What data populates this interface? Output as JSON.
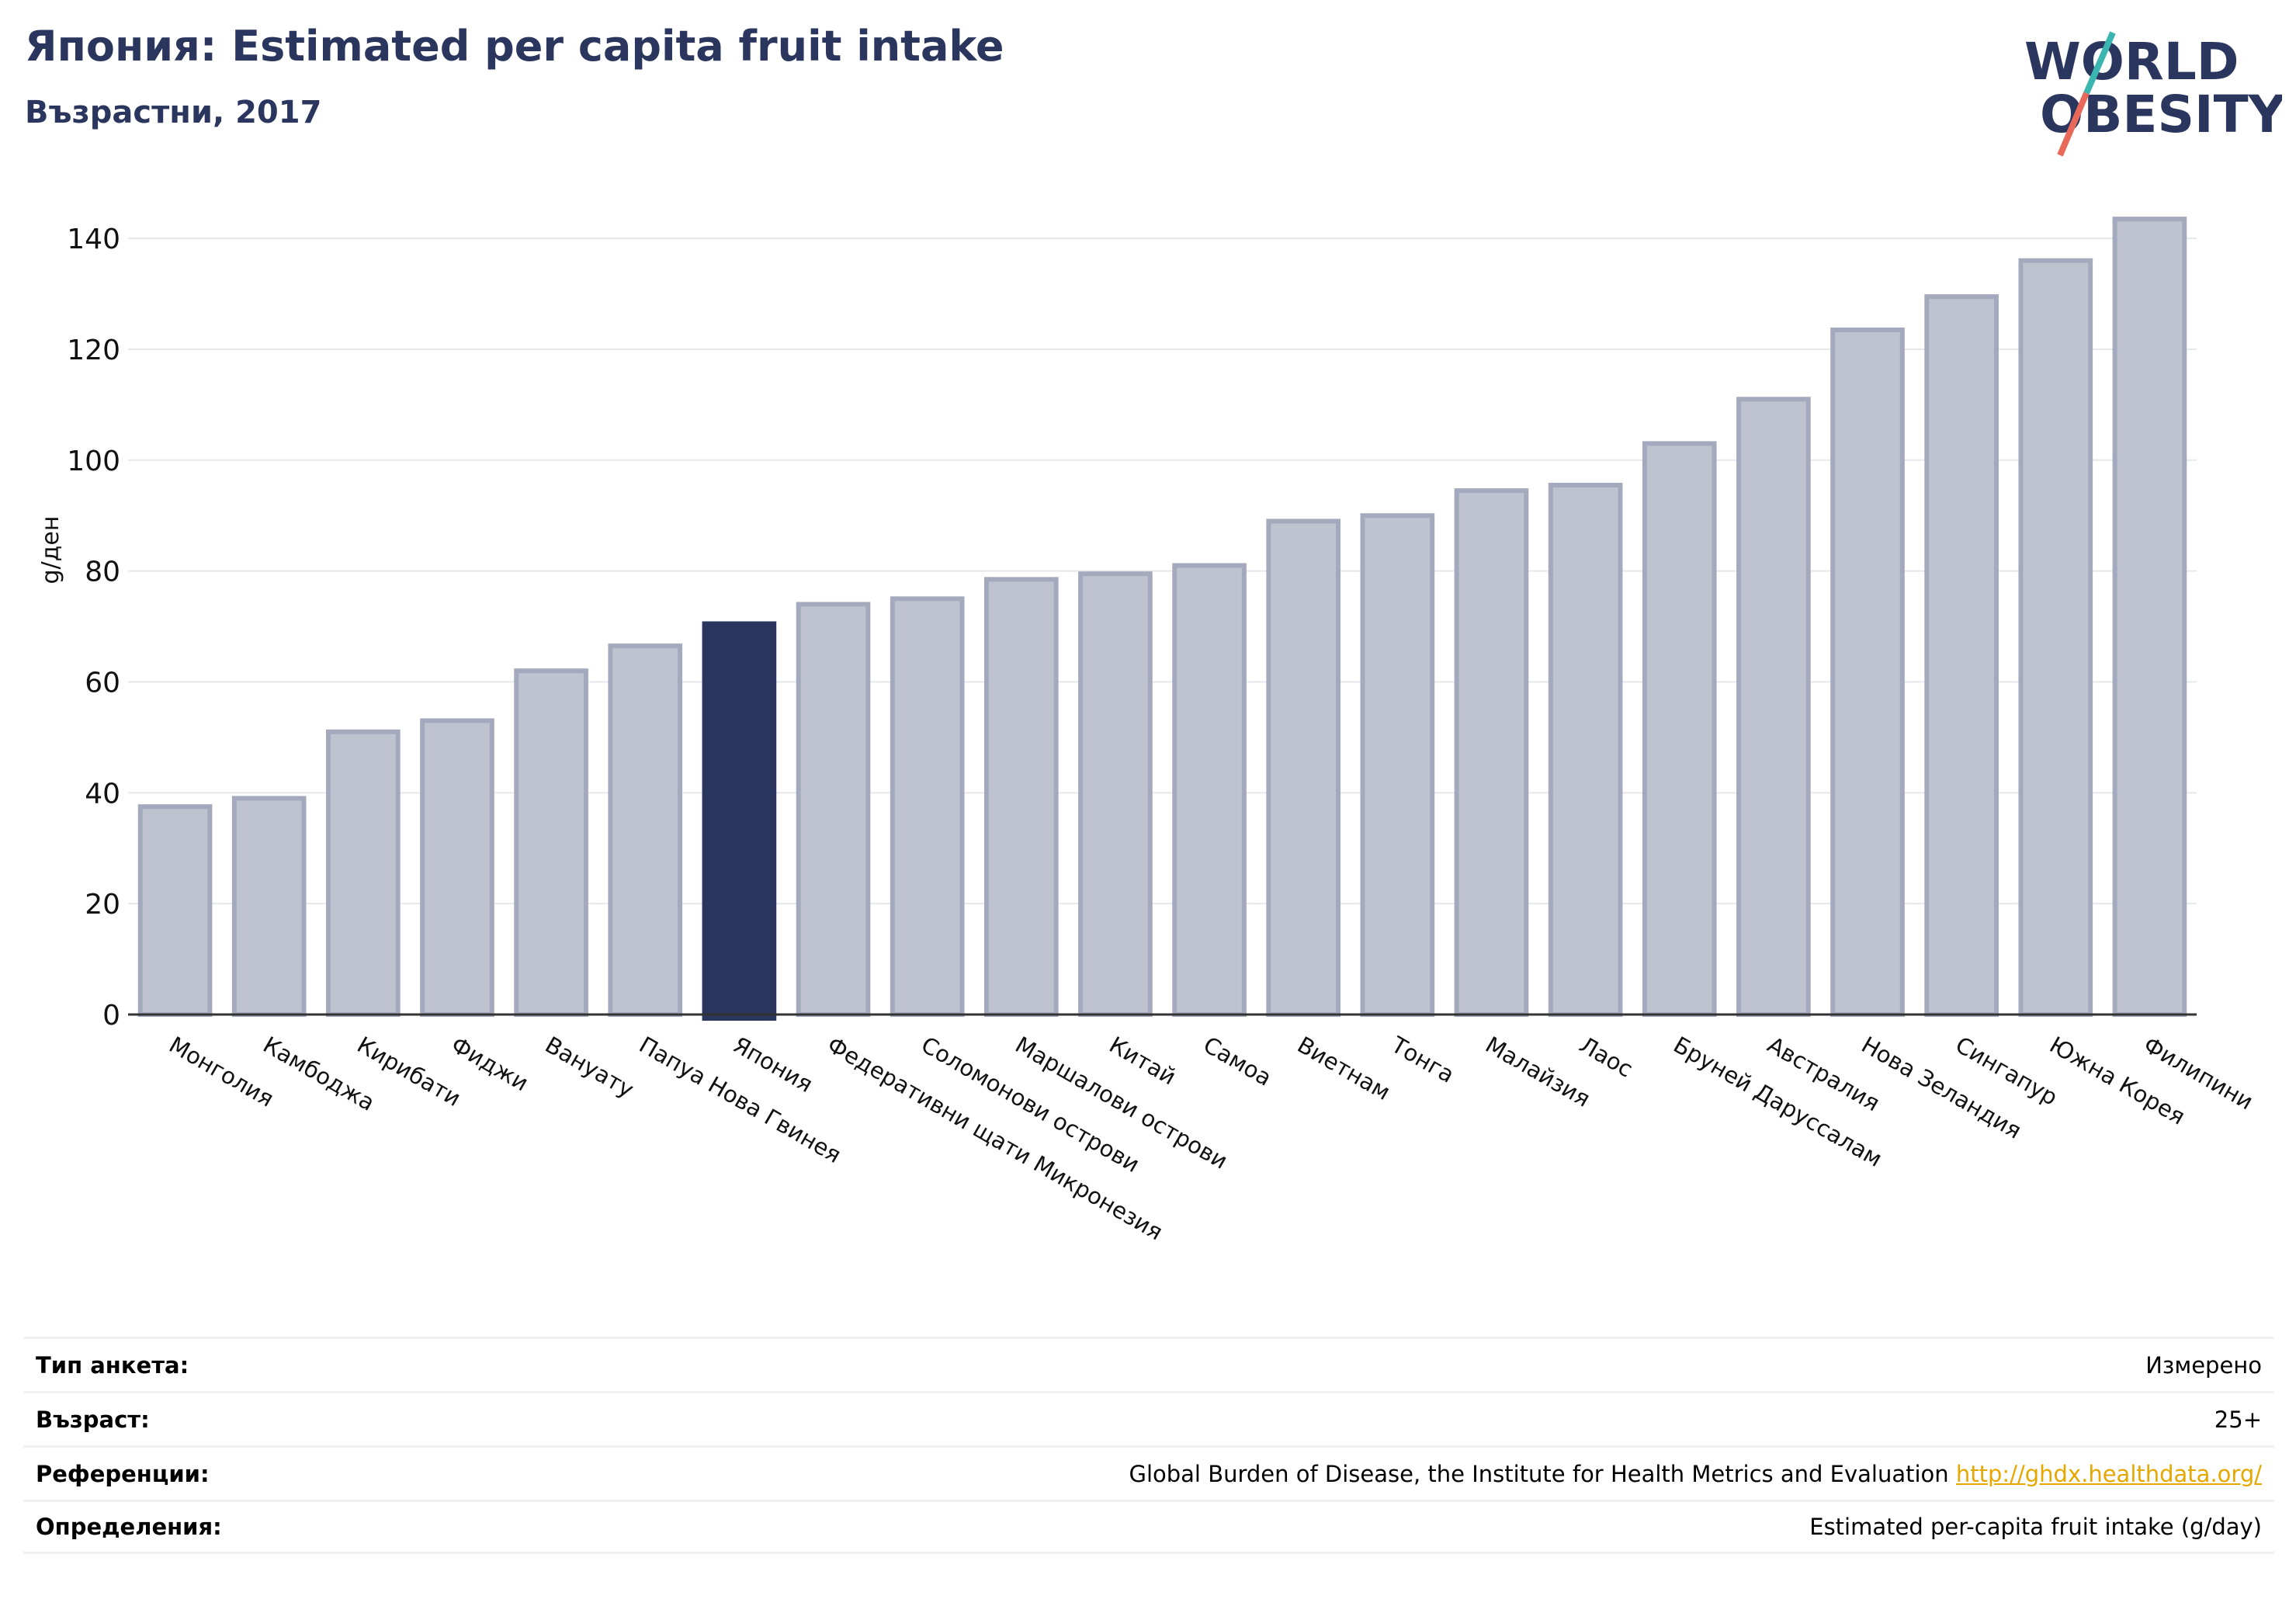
{
  "header": {
    "title": "Япония: Estimated per capita fruit intake",
    "subtitle": "Възрастни, 2017"
  },
  "logo": {
    "line1": "WORLD",
    "line2": "OBESITY"
  },
  "colors": {
    "highlight": "#2b365e",
    "bar_fill": "#bfc2cf",
    "bar_stroke": "#a4a9bd",
    "grid": "#e6e8ee",
    "logo_text": "#2b365e",
    "logo_slash_teal": "#3ab5b0",
    "logo_slash_coral": "#e8685a",
    "link": "#e6a700"
  },
  "chart_data": {
    "type": "bar",
    "title": "Япония: Estimated per capita fruit intake",
    "subtitle": "Възрастни, 2017",
    "xlabel": "",
    "ylabel": "g/ден",
    "ylim": [
      0,
      148
    ],
    "yticks": [
      0,
      20,
      40,
      60,
      80,
      100,
      120,
      140
    ],
    "grid": true,
    "highlight_category": "Япония",
    "categories": [
      "Монголия",
      "Камбоджа",
      "Кирибати",
      "Фиджи",
      "Вануату",
      "Папуа Нова Гвинея",
      "Япония",
      "Федеративни щати Микронезия",
      "Соломонови острови",
      "Маршалови острови",
      "Китай",
      "Самоа",
      "Виетнам",
      "Тонга",
      "Малайзия",
      "Лаос",
      "Бруней Даруссалам",
      "Австралия",
      "Нова Зеландия",
      "Сингапур",
      "Южна Корея",
      "Филипини"
    ],
    "values": [
      37.5,
      39,
      51,
      53,
      62,
      66.5,
      70.5,
      74,
      75,
      78.5,
      79.5,
      81,
      89,
      90,
      94.5,
      95.5,
      103,
      111,
      123.5,
      129.5,
      136,
      143.5
    ]
  },
  "info_table": {
    "rows": [
      {
        "label": "Тип анкета:",
        "value": "Измерено"
      },
      {
        "label": "Възраст:",
        "value": "25+"
      },
      {
        "label": "Референции:",
        "value": "Global Burden of Disease, the Institute for Health Metrics and Evaluation",
        "link": "http://ghdx.healthdata.org/"
      },
      {
        "label": "Определения:",
        "value": "Estimated per-capita fruit intake (g/day)"
      }
    ]
  }
}
